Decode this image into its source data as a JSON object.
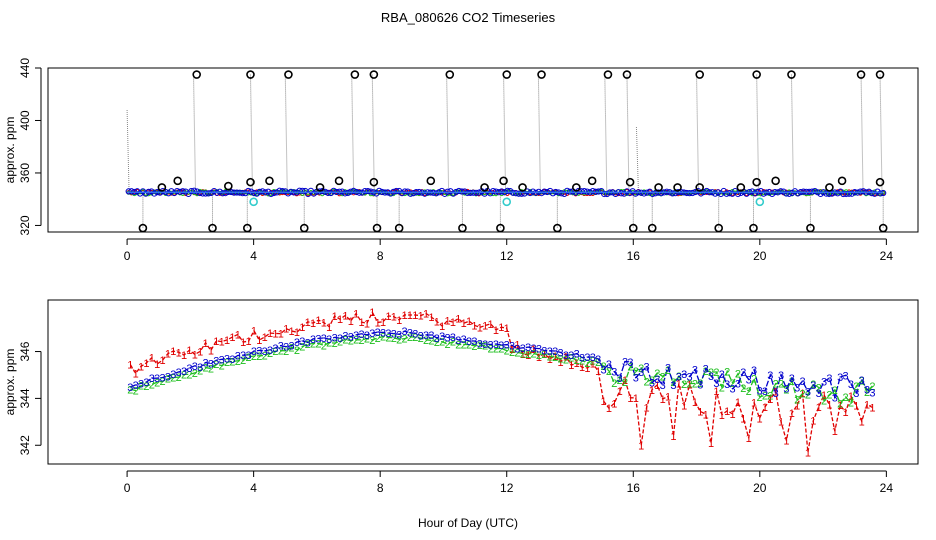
{
  "colors": {
    "series1": "#e00000",
    "series2": "#1fbf1f",
    "series3": "#0000cc",
    "outlier": "#000000",
    "cyan_marker": "#33cccc",
    "spike_line": "#888888",
    "series_line_top": "#3377ff"
  },
  "chart_data": [
    {
      "type": "scatter",
      "title": "RBA_080626  CO2 Timeseries",
      "xlabel": "",
      "ylabel": "approx. ppm",
      "xlim": [
        -2.5,
        25
      ],
      "ylim": [
        315,
        440
      ],
      "xticks": [
        0,
        4,
        8,
        12,
        16,
        20,
        24
      ],
      "yticks": [
        320,
        360,
        400,
        440
      ],
      "grid": false,
      "baseline_ppm": 345,
      "series": [
        {
          "name": "1",
          "marker": "point",
          "description_from_image": "dense coloured baseline near 345 ppm"
        },
        {
          "name": "2",
          "marker": "point"
        },
        {
          "name": "3",
          "marker": "point"
        }
      ],
      "high_outliers": {
        "marker": "open circle",
        "x": [
          2.2,
          3.9,
          5.1,
          7.2,
          7.8,
          10.2,
          12.0,
          13.1,
          15.2,
          15.8,
          18.1,
          19.9,
          21.0,
          23.2,
          23.8
        ],
        "y": [
          435,
          435,
          435,
          435,
          435,
          435,
          435,
          435,
          435,
          435,
          435,
          435,
          435,
          435,
          435
        ]
      },
      "low_outliers": {
        "marker": "open circle",
        "x": [
          0.5,
          2.7,
          3.8,
          5.6,
          7.9,
          8.6,
          10.6,
          11.8,
          13.6,
          16.0,
          16.6,
          18.7,
          19.8,
          21.6,
          23.9
        ],
        "y": [
          318,
          318,
          318,
          318,
          318,
          318,
          318,
          318,
          318,
          318,
          318,
          318,
          318,
          318,
          318
        ]
      },
      "moderate_outliers": {
        "marker": "open circle",
        "x": [
          1.1,
          1.6,
          3.2,
          3.9,
          4.5,
          6.1,
          6.7,
          7.8,
          9.6,
          11.3,
          11.9,
          12.5,
          14.2,
          14.7,
          15.9,
          16.8,
          17.4,
          18.1,
          19.4,
          19.9,
          20.5,
          22.2,
          22.6,
          23.8
        ],
        "y": [
          349,
          354,
          350,
          353,
          354,
          349,
          354,
          353,
          354,
          349,
          354,
          349,
          349,
          354,
          353,
          349,
          349,
          349,
          349,
          353,
          354,
          349,
          354,
          353
        ]
      },
      "cyan_points": {
        "x": [
          4.0,
          12.0,
          20.0
        ],
        "y": [
          338,
          338,
          338
        ]
      },
      "spikes": {
        "x": [
          0.0,
          2.1,
          3.9,
          5.0,
          7.1,
          7.75,
          10.1,
          11.9,
          13.0,
          15.1,
          15.8,
          16.1,
          18.0,
          19.9,
          21.0,
          23.2,
          23.8
        ],
        "top": [
          408,
          435,
          435,
          435,
          435,
          435,
          435,
          435,
          435,
          435,
          435,
          395,
          435,
          435,
          435,
          435,
          435
        ]
      }
    },
    {
      "type": "line",
      "title": "",
      "xlabel": "Hour of Day (UTC)",
      "ylabel": "approx. ppm",
      "xlim": [
        -2.5,
        25
      ],
      "ylim": [
        341.2,
        348.2
      ],
      "xticks": [
        0,
        4,
        8,
        12,
        16,
        20,
        24
      ],
      "yticks": [
        342,
        344,
        346
      ],
      "grid": false,
      "markers_are_series_labels": true,
      "series": [
        {
          "name": "1",
          "color": "#e00000",
          "description_from_image": "highest through 0–12 h, then drops well below the others with deep dips after 15 h"
        },
        {
          "name": "2",
          "color": "#1fbf1f",
          "description_from_image": "tracks series 3 closely"
        },
        {
          "name": "3",
          "color": "#0000cc",
          "description_from_image": "rises from about 344.5 ppm at 0 h to about 346.8 ppm near 9 h, then falls and becomes noisy after 15 h"
        }
      ],
      "dips": {
        "series1_deep_x": [
          16.2,
          17.3,
          18.4,
          19.6,
          20.8,
          21.5,
          22.4
        ],
        "series1_deep_y": [
          342.0,
          342.4,
          342.1,
          342.3,
          342.2,
          341.7,
          342.6
        ]
      }
    }
  ]
}
